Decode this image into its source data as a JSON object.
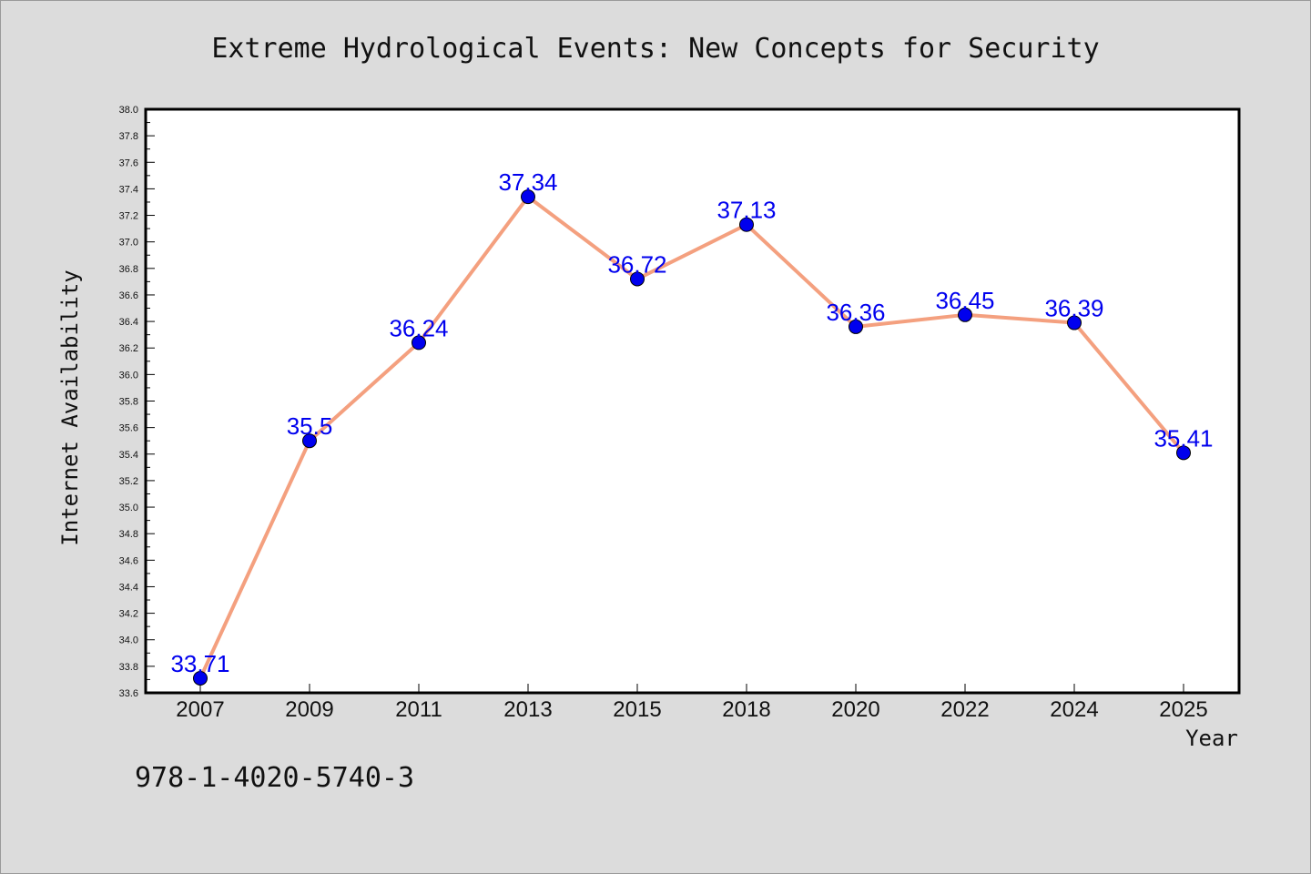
{
  "chart_data": {
    "type": "line",
    "title": "Extreme Hydrological Events: New Concepts for Security",
    "xlabel": "Year",
    "ylabel": "Internet Availability",
    "categories": [
      "2007",
      "2009",
      "2011",
      "2013",
      "2015",
      "2018",
      "2020",
      "2022",
      "2024",
      "2025"
    ],
    "series": [
      {
        "values": [
          33.71,
          35.5,
          36.24,
          37.34,
          36.72,
          37.13,
          36.36,
          36.45,
          36.39,
          35.41
        ],
        "labels": [
          "33.71",
          "35.5",
          "36.24",
          "37.34",
          "36.72",
          "37.13",
          "36.36",
          "36.45",
          "36.39",
          "35.41"
        ]
      }
    ],
    "ylim": [
      33.6,
      38.0
    ],
    "yticks": [
      "33.6",
      "33.8",
      "34.0",
      "34.2",
      "34.4",
      "34.6",
      "34.8",
      "35.0",
      "35.2",
      "35.4",
      "35.6",
      "35.8",
      "36.0",
      "36.2",
      "36.4",
      "36.6",
      "36.8",
      "37.0",
      "37.2",
      "37.4",
      "37.6",
      "37.8",
      "38.0"
    ],
    "grid": false,
    "colors": {
      "line": "#f4a07f",
      "marker": "#0000ee",
      "label": "#0000ee",
      "background": "#dcdcdc",
      "plot_background": "#ffffff"
    }
  },
  "footer": {
    "isbn": "978-1-4020-5740-3"
  }
}
